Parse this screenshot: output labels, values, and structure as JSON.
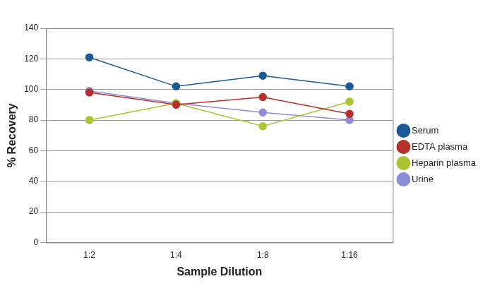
{
  "chart_data": {
    "type": "line",
    "x_label": "Sample Dilution",
    "y_label": "% Recovery",
    "categories": [
      "1:2",
      "1:4",
      "1:8",
      "1:16"
    ],
    "series": [
      {
        "name": "Serum",
        "color": "#1a5a96",
        "values": [
          121,
          102,
          109,
          102
        ]
      },
      {
        "name": "EDTA plasma",
        "color": "#b5302c",
        "values": [
          98,
          90,
          95,
          84
        ]
      },
      {
        "name": "Heparin plasma",
        "color": "#a9c52f",
        "values": [
          80,
          91,
          76,
          92
        ]
      },
      {
        "name": "Urine",
        "color": "#8b8ed6",
        "values": [
          99,
          91,
          85,
          80
        ]
      }
    ],
    "ylim": [
      0,
      140
    ],
    "yticks": [
      0,
      20,
      40,
      60,
      80,
      100,
      120,
      140
    ],
    "grid": true,
    "legend": "right",
    "marker": "circle"
  }
}
